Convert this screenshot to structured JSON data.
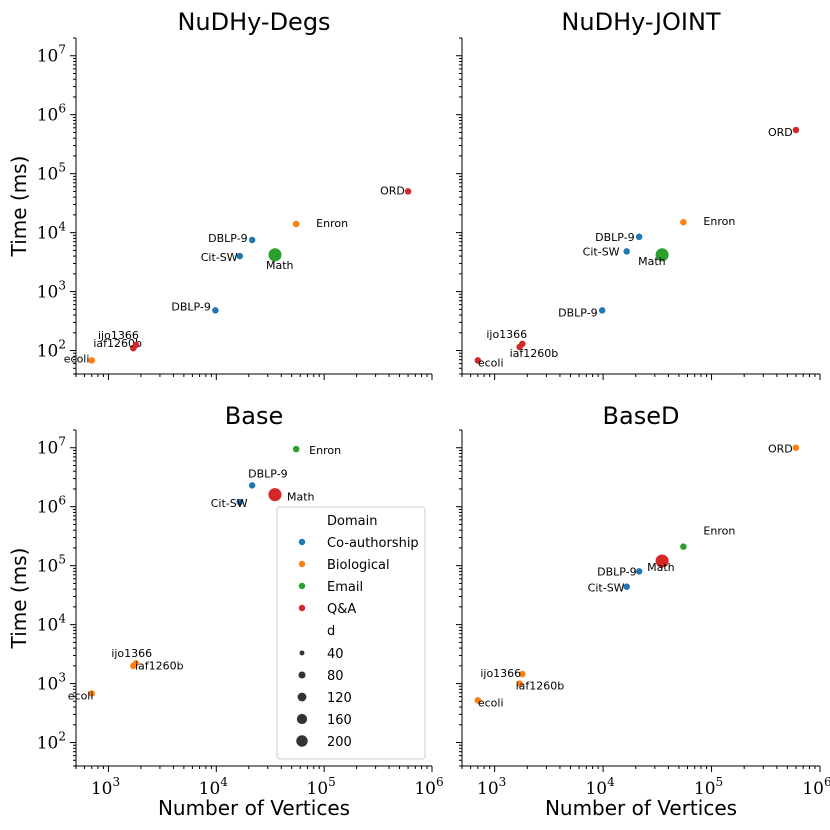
{
  "colors": {
    "Co-authorship": "#1f77b4",
    "Biological": "#ff7f0e",
    "Email": "#2ca02c",
    "Q&A": "#d62728"
  },
  "legend": {
    "domain_title": "Domain",
    "domains": [
      "Co-authorship",
      "Biological",
      "Email",
      "Q&A"
    ],
    "size_title": "d",
    "sizes": [
      "40",
      "80",
      "120",
      "160",
      "200"
    ],
    "placement": "lower-right of Base panel"
  },
  "chart_data": [
    {
      "type": "scatter",
      "title": "NuDHy-Degs",
      "xlabel": "",
      "ylabel": "Time (ms)",
      "xscale": "log",
      "yscale": "log",
      "xlim": [
        500,
        1000000
      ],
      "ylim": [
        40,
        20000000
      ],
      "points": [
        {
          "label": "ecoli",
          "x": 700,
          "y": 68,
          "domain": "Biological",
          "d": 40
        },
        {
          "label": "iaf1260b",
          "x": 1700,
          "y": 110,
          "domain": "Q&A",
          "d": 40
        },
        {
          "label": "ijo1366",
          "x": 1800,
          "y": 125,
          "domain": "Q&A",
          "d": 40
        },
        {
          "label": "DBLP-9",
          "x": 9800,
          "y": 480,
          "domain": "Co-authorship",
          "d": 40
        },
        {
          "label": "Cit-SW",
          "x": 16500,
          "y": 4000,
          "domain": "Co-authorship",
          "d": 40
        },
        {
          "label": "DBLP-9",
          "x": 21500,
          "y": 7500,
          "domain": "Co-authorship",
          "d": 40
        },
        {
          "label": "Math",
          "x": 35000,
          "y": 4200,
          "domain": "Email",
          "d": 200
        },
        {
          "label": "Enron",
          "x": 55000,
          "y": 14000,
          "domain": "Biological",
          "d": 40
        },
        {
          "label": "ORD",
          "x": 600000,
          "y": 50000,
          "domain": "Q&A",
          "d": 40
        }
      ]
    },
    {
      "type": "scatter",
      "title": "NuDHy-JOINT",
      "xlabel": "",
      "ylabel": "",
      "xscale": "log",
      "yscale": "log",
      "xlim": [
        500,
        1000000
      ],
      "ylim": [
        40,
        20000000
      ],
      "points": [
        {
          "label": "ecoli",
          "x": 700,
          "y": 68,
          "domain": "Q&A",
          "d": 40
        },
        {
          "label": "iaf1260b",
          "x": 1700,
          "y": 115,
          "domain": "Q&A",
          "d": 40
        },
        {
          "label": "ijo1366",
          "x": 1800,
          "y": 130,
          "domain": "Q&A",
          "d": 40
        },
        {
          "label": "DBLP-9",
          "x": 9800,
          "y": 480,
          "domain": "Co-authorship",
          "d": 40
        },
        {
          "label": "Cit-SW",
          "x": 16500,
          "y": 4800,
          "domain": "Co-authorship",
          "d": 40
        },
        {
          "label": "DBLP-9",
          "x": 21500,
          "y": 8500,
          "domain": "Co-authorship",
          "d": 40
        },
        {
          "label": "Math",
          "x": 35000,
          "y": 4200,
          "domain": "Email",
          "d": 200
        },
        {
          "label": "Enron",
          "x": 55000,
          "y": 15000,
          "domain": "Biological",
          "d": 40
        },
        {
          "label": "ORD",
          "x": 600000,
          "y": 550000,
          "domain": "Q&A",
          "d": 40
        }
      ]
    },
    {
      "type": "scatter",
      "title": "Base",
      "xlabel": "Number of Vertices",
      "ylabel": "Time (ms)",
      "xscale": "log",
      "yscale": "log",
      "xlim": [
        500,
        1000000
      ],
      "ylim": [
        40,
        20000000
      ],
      "points": [
        {
          "label": "ecoli",
          "x": 700,
          "y": 680,
          "domain": "Biological",
          "d": 40
        },
        {
          "label": "ijo1366",
          "x": 1700,
          "y": 2000,
          "domain": "Biological",
          "d": 40
        },
        {
          "label": "iaf1260b",
          "x": 1800,
          "y": 2200,
          "domain": "Biological",
          "d": 40
        },
        {
          "label": "Cit-SW",
          "x": 16500,
          "y": 1200000,
          "domain": "Co-authorship",
          "d": 40
        },
        {
          "label": "DBLP-9",
          "x": 21500,
          "y": 2300000,
          "domain": "Co-authorship",
          "d": 40
        },
        {
          "label": "Math",
          "x": 35000,
          "y": 1600000,
          "domain": "Q&A",
          "d": 200
        },
        {
          "label": "Enron",
          "x": 55000,
          "y": 9500000,
          "domain": "Email",
          "d": 40
        }
      ]
    },
    {
      "type": "scatter",
      "title": "BaseD",
      "xlabel": "Number of Vertices",
      "ylabel": "",
      "xscale": "log",
      "yscale": "log",
      "xlim": [
        500,
        1000000
      ],
      "ylim": [
        40,
        20000000
      ],
      "points": [
        {
          "label": "ecoli",
          "x": 700,
          "y": 520,
          "domain": "Biological",
          "d": 40
        },
        {
          "label": "iaf1260b",
          "x": 1700,
          "y": 1000,
          "domain": "Biological",
          "d": 40
        },
        {
          "label": "ijo1366",
          "x": 1800,
          "y": 1450,
          "domain": "Biological",
          "d": 40
        },
        {
          "label": "Cit-SW",
          "x": 16500,
          "y": 44000,
          "domain": "Co-authorship",
          "d": 40
        },
        {
          "label": "DBLP-9",
          "x": 21500,
          "y": 80000,
          "domain": "Co-authorship",
          "d": 40
        },
        {
          "label": "Math",
          "x": 35000,
          "y": 120000,
          "domain": "Q&A",
          "d": 200
        },
        {
          "label": "Enron",
          "x": 55000,
          "y": 210000,
          "domain": "Email",
          "d": 40
        },
        {
          "label": "ORD",
          "x": 600000,
          "y": 10000000,
          "domain": "Biological",
          "d": 40
        }
      ]
    }
  ]
}
